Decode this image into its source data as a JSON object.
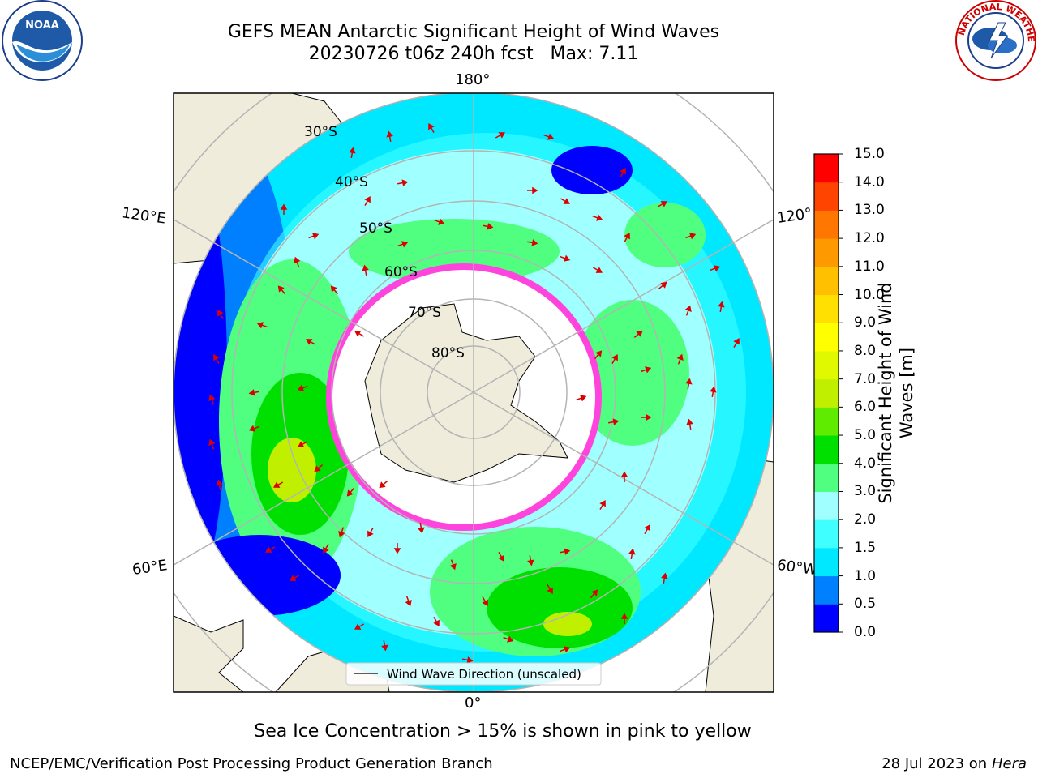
{
  "title": {
    "line1": "GEFS MEAN Antarctic Significant Height of Wind Waves",
    "line2": "20230726 t06z 240h fcst   Max: 7.11"
  },
  "map": {
    "projection": "south-polar-stereographic",
    "longitude_labels": {
      "top": "180°",
      "bottom": "0°",
      "left_upper": "120°E",
      "left_lower": "60°E",
      "right_upper": "120°",
      "right_lower": "60°W"
    },
    "latitude_labels": [
      "30°S",
      "40°S",
      "50°S",
      "60°S",
      "70°S",
      "80°S"
    ],
    "legend": "Wind Wave Direction (unscaled)",
    "colors": {
      "land": "#efecdc",
      "ice_region": "#ffffff",
      "ice_edge": "#ff44dd",
      "arrows": "#dd0000",
      "graticule": "#b4b4b4"
    }
  },
  "colorbar": {
    "label": "Significant Height of Wind Waves [m]",
    "ticks": [
      "0.0",
      "0.5",
      "1.0",
      "1.5",
      "2.0",
      "3.0",
      "4.0",
      "5.0",
      "6.0",
      "7.0",
      "8.0",
      "9.0",
      "10.0",
      "11.0",
      "12.0",
      "13.0",
      "14.0",
      "15.0"
    ],
    "colors": [
      "#0000ff",
      "#0080ff",
      "#00e8ff",
      "#40ffff",
      "#a0ffff",
      "#50ff80",
      "#00e000",
      "#60ec00",
      "#c0f000",
      "#e0f800",
      "#ffff00",
      "#ffe000",
      "#ffc000",
      "#ff9900",
      "#ff7700",
      "#ff4400",
      "#ff0000"
    ]
  },
  "note": "Sea Ice Concentration > 15% is shown in pink to yellow",
  "footer": {
    "left": "NCEP/EMC/Verification Post Processing Product Generation Branch",
    "right_date": "28 Jul 2023 on ",
    "right_machine": "Hera"
  },
  "logos": {
    "left": "NOAA",
    "right": "NATIONAL WEATHER SERVICE"
  }
}
